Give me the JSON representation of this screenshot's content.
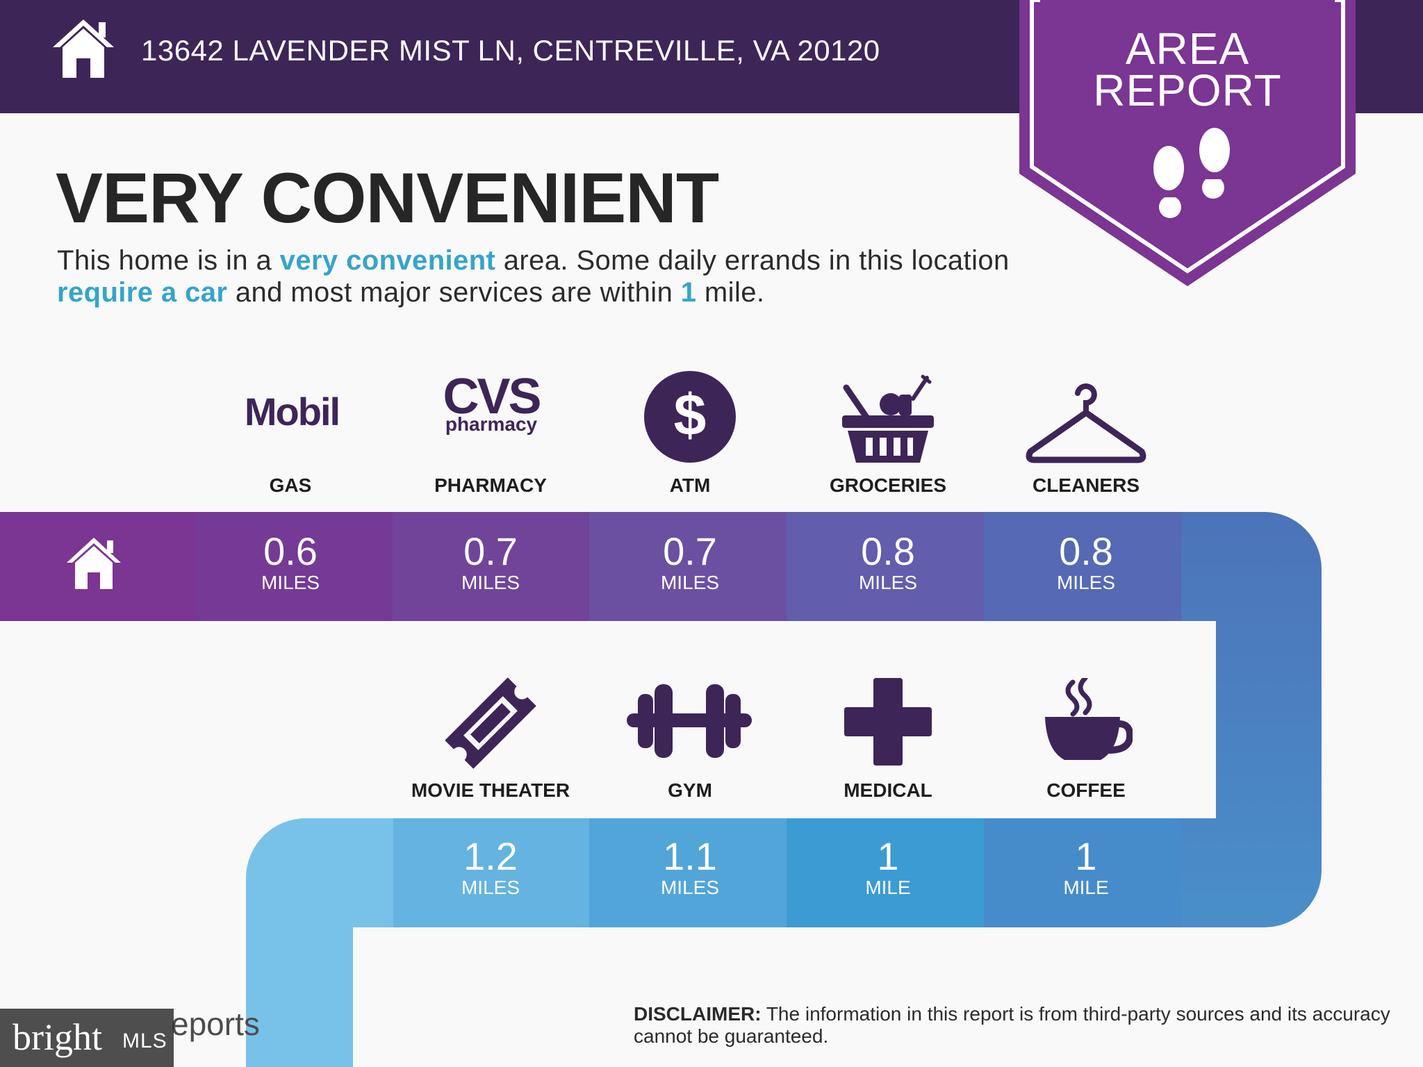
{
  "header": {
    "address": "13642 LAVENDER MIST LN, CENTREVILLE, VA 20120",
    "home_icon": "house-icon"
  },
  "badge": {
    "line1": "AREA",
    "line2": "REPORT",
    "icon": "footprints-icon"
  },
  "headline": "VERY CONVENIENT",
  "summary": {
    "part1": "This home is in a ",
    "highlight1": "very convenient",
    "part2": " area. Some daily errands in this location ",
    "highlight2": "require a car",
    "part3": " and most major services are within ",
    "highlight3": "1",
    "part4": " mile."
  },
  "colors": {
    "header": "#3d2558",
    "badge": "#7b3592",
    "accent_text": "#35a4c9",
    "icon": "#3d2558"
  },
  "services_top": [
    {
      "logo": "Mobil",
      "label": "GAS",
      "value": "0.6",
      "unit": "MILES"
    },
    {
      "logo_line1": "CVS",
      "logo_line2": "pharmacy",
      "label": "PHARMACY",
      "value": "0.7",
      "unit": "MILES"
    },
    {
      "icon": "dollar-icon",
      "label": "ATM",
      "value": "0.7",
      "unit": "MILES"
    },
    {
      "icon": "grocery-basket-icon",
      "label": "GROCERIES",
      "value": "0.8",
      "unit": "MILES"
    },
    {
      "icon": "hanger-icon",
      "label": "CLEANERS",
      "value": "0.8",
      "unit": "MILES"
    }
  ],
  "services_bottom": [
    {
      "icon": "ticket-icon",
      "label": "MOVIE THEATER",
      "value": "1.2",
      "unit": "MILES"
    },
    {
      "icon": "dumbbell-icon",
      "label": "GYM",
      "value": "1.1",
      "unit": "MILES"
    },
    {
      "icon": "medical-cross-icon",
      "label": "MEDICAL",
      "value": "1",
      "unit": "MILE"
    },
    {
      "icon": "coffee-cup-icon",
      "label": "COFFEE",
      "value": "1",
      "unit": "MILE"
    }
  ],
  "disclaimer": {
    "label": "DISCLAIMER:",
    "text": " The information in this report is from third-party sources and its accuracy cannot be guaranteed."
  },
  "footer": {
    "reports_text": "eports",
    "bright_logo": "bright",
    "bright_mls": "MLS"
  }
}
